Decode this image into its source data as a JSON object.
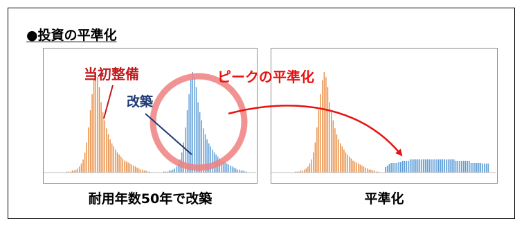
{
  "heading": "●投資の平準化",
  "labels": {
    "initial": "当初整備",
    "rebuild": "改築",
    "peak": "ピークの平準化"
  },
  "captions": {
    "left": "耐用年数50年で改築",
    "right": "平準化"
  },
  "colors": {
    "initial_bars": "#e88a3e",
    "rebuild_bars": "#5b9bd5",
    "initial_label": "#c0191c",
    "rebuild_label": "#1f3a73",
    "peak_label": "#e8110f",
    "circle": "#f08080",
    "arrow": "#e8110f"
  },
  "icons": {
    "bullet": "black-circle-bullet"
  }
}
